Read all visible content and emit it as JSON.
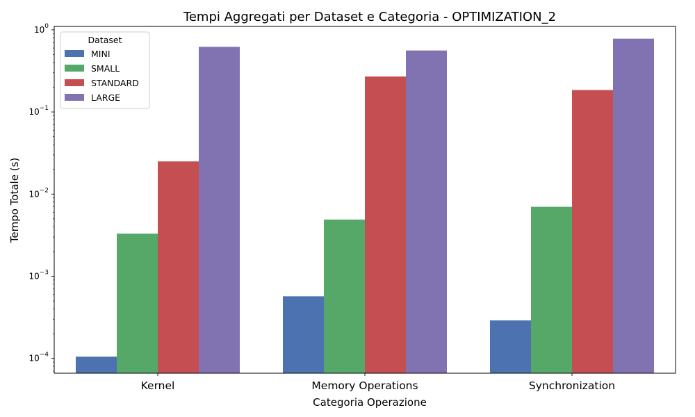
{
  "chart_data": {
    "type": "bar",
    "title": "Tempi Aggregati per Dataset e Categoria - OPTIMIZATION_2",
    "xlabel": "Categoria Operazione",
    "ylabel": "Tempo Totale (s)",
    "yscale": "log",
    "ylim": [
      6.6e-05,
      1.1
    ],
    "yticks": [
      0.0001,
      0.001,
      0.01,
      0.1,
      1
    ],
    "categories": [
      "Kernel",
      "Memory Operations",
      "Synchronization"
    ],
    "legend": {
      "title": "Dataset",
      "placement": "top-left"
    },
    "grid": false,
    "series": [
      {
        "name": "MINI",
        "color": "#4c72b0",
        "values": [
          0.000105,
          0.00057,
          0.00029
        ]
      },
      {
        "name": "SMALL",
        "color": "#55a868",
        "values": [
          0.0033,
          0.0049,
          0.007
        ]
      },
      {
        "name": "STANDARD",
        "color": "#c44e52",
        "values": [
          0.025,
          0.27,
          0.185
        ]
      },
      {
        "name": "LARGE",
        "color": "#8172b2",
        "values": [
          0.62,
          0.56,
          0.78
        ]
      }
    ]
  }
}
